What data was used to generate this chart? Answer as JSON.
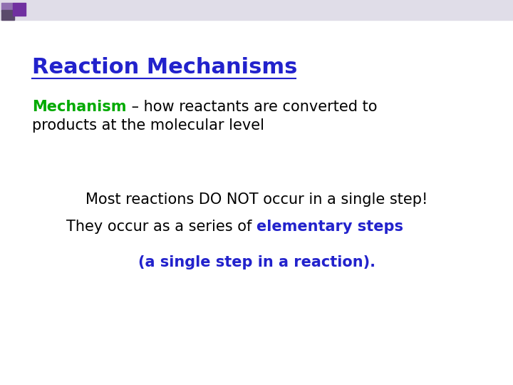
{
  "bg_color": "#ffffff",
  "header_bar_color": "#e0dde8",
  "sq1_color": "#5a4a6b",
  "sq2_color": "#7030a0",
  "title_text": "Reaction Mechanisms",
  "title_color": "#2222cc",
  "title_fontsize": 22,
  "underline_color": "#2222cc",
  "mechanism_word": "Mechanism",
  "mechanism_color": "#00aa00",
  "rest_of_line1": " – how reactants are converted to",
  "line2_text": "products at the molecular level",
  "body_color": "#000000",
  "body_fontsize": 15,
  "line3_text": "Most reactions DO NOT occur in a single step!",
  "line3_color": "#000000",
  "line3_fontsize": 15,
  "line4a": "They occur as a series of ",
  "line4b": "elementary steps",
  "line4_color_a": "#000000",
  "line4_color_b": "#2222cc",
  "line4_fontsize": 15,
  "line5_text": "(a single step in a reaction).",
  "line5_color": "#2222cc",
  "line5_fontsize": 15
}
